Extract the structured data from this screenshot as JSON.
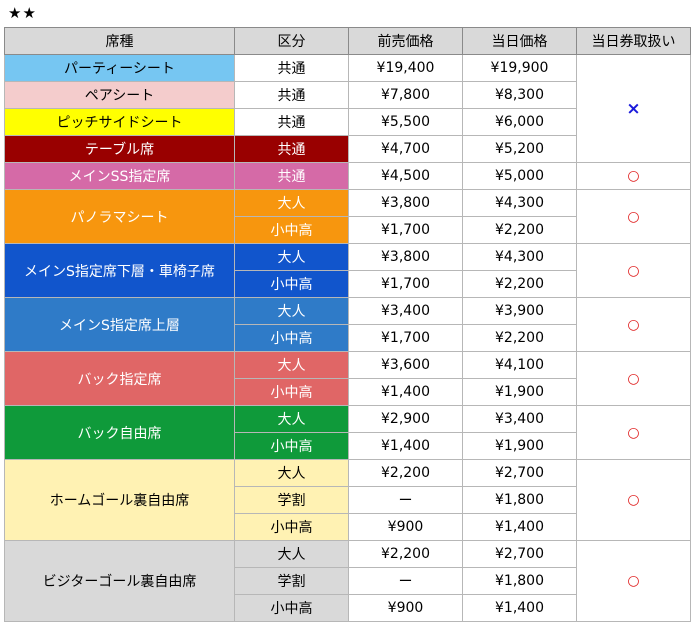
{
  "stars": "★★",
  "headers": [
    "席種",
    "区分",
    "前売価格",
    "当日価格",
    "当日券取扱い"
  ],
  "sections": [
    {
      "name": "パーティーシート",
      "bg": "#76c6f2",
      "fg": "#000000",
      "handling": "×",
      "rows": [
        {
          "kubun": "共通",
          "kubun_bg": "#ffffff",
          "mae": "¥19,400",
          "toujitsu": "¥19,900"
        }
      ]
    },
    {
      "name": "ペアシート",
      "bg": "#f4cccc",
      "fg": "#000000",
      "handling": "",
      "rows": [
        {
          "kubun": "共通",
          "kubun_bg": "#ffffff",
          "mae": "¥7,800",
          "toujitsu": "¥8,300"
        }
      ]
    },
    {
      "name": "ピッチサイドシート",
      "bg": "#ffff00",
      "fg": "#000000",
      "handling": "",
      "rows": [
        {
          "kubun": "共通",
          "kubun_bg": "#ffffff",
          "mae": "¥5,500",
          "toujitsu": "¥6,000"
        }
      ]
    },
    {
      "name": "テーブル席",
      "bg": "#990000",
      "fg": "#ffffff",
      "handling": "",
      "rows": [
        {
          "kubun": "共通",
          "kubun_bg": "#990000",
          "mae": "¥4,700",
          "toujitsu": "¥5,200"
        }
      ]
    },
    {
      "name": "メインSS指定席",
      "bg": "#d56aa7",
      "fg": "#ffffff",
      "handling": "○",
      "rows": [
        {
          "kubun": "共通",
          "kubun_bg": "#d56aa7",
          "mae": "¥4,500",
          "toujitsu": "¥5,000"
        }
      ]
    },
    {
      "name": "パノラマシート",
      "bg": "#f7960e",
      "fg": "#ffffff",
      "handling": "○",
      "rows": [
        {
          "kubun": "大人",
          "kubun_bg": "#f7960e",
          "mae": "¥3,800",
          "toujitsu": "¥4,300"
        },
        {
          "kubun": "小中高",
          "kubun_bg": "#f7960e",
          "mae": "¥1,700",
          "toujitsu": "¥2,200"
        }
      ]
    },
    {
      "name": "メインS指定席下層・車椅子席",
      "bg": "#1155cc",
      "fg": "#ffffff",
      "handling": "○",
      "rows": [
        {
          "kubun": "大人",
          "kubun_bg": "#1155cc",
          "mae": "¥3,800",
          "toujitsu": "¥4,300"
        },
        {
          "kubun": "小中高",
          "kubun_bg": "#1155cc",
          "mae": "¥1,700",
          "toujitsu": "¥2,200"
        }
      ]
    },
    {
      "name": "メインS指定席上層",
      "bg": "#2f7bc8",
      "fg": "#ffffff",
      "handling": "○",
      "rows": [
        {
          "kubun": "大人",
          "kubun_bg": "#2f7bc8",
          "mae": "¥3,400",
          "toujitsu": "¥3,900"
        },
        {
          "kubun": "小中高",
          "kubun_bg": "#2f7bc8",
          "mae": "¥1,700",
          "toujitsu": "¥2,200"
        }
      ]
    },
    {
      "name": "バック指定席",
      "bg": "#e06666",
      "fg": "#ffffff",
      "handling": "○",
      "rows": [
        {
          "kubun": "大人",
          "kubun_bg": "#e06666",
          "mae": "¥3,600",
          "toujitsu": "¥4,100"
        },
        {
          "kubun": "小中高",
          "kubun_bg": "#e06666",
          "mae": "¥1,400",
          "toujitsu": "¥1,900"
        }
      ]
    },
    {
      "name": "バック自由席",
      "bg": "#0f9a3a",
      "fg": "#ffffff",
      "handling": "○",
      "rows": [
        {
          "kubun": "大人",
          "kubun_bg": "#0f9a3a",
          "mae": "¥2,900",
          "toujitsu": "¥3,400"
        },
        {
          "kubun": "小中高",
          "kubun_bg": "#0f9a3a",
          "mae": "¥1,400",
          "toujitsu": "¥1,900"
        }
      ]
    },
    {
      "name": "ホームゴール裏自由席",
      "bg": "#fff2b3",
      "fg": "#000000",
      "handling": "○",
      "rows": [
        {
          "kubun": "大人",
          "kubun_bg": "#fff2b3",
          "mae": "¥2,200",
          "toujitsu": "¥2,700"
        },
        {
          "kubun": "学割",
          "kubun_bg": "#fff2b3",
          "mae": "ー",
          "toujitsu": "¥1,800"
        },
        {
          "kubun": "小中高",
          "kubun_bg": "#fff2b3",
          "mae": "¥900",
          "toujitsu": "¥1,400"
        }
      ]
    },
    {
      "name": "ビジターゴール裏自由席",
      "bg": "#d9d9d9",
      "fg": "#000000",
      "handling": "○",
      "rows": [
        {
          "kubun": "大人",
          "kubun_bg": "#d9d9d9",
          "mae": "¥2,200",
          "toujitsu": "¥2,700"
        },
        {
          "kubun": "学割",
          "kubun_bg": "#d9d9d9",
          "mae": "ー",
          "toujitsu": "¥1,800"
        },
        {
          "kubun": "小中高",
          "kubun_bg": "#d9d9d9",
          "mae": "¥900",
          "toujitsu": "¥1,400"
        }
      ]
    }
  ]
}
